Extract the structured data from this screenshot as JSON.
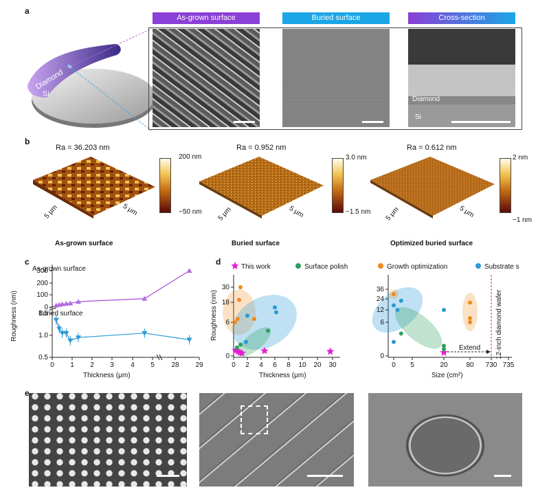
{
  "panel_labels": {
    "a": "a",
    "b": "b",
    "c": "c",
    "d": "d",
    "e": "e"
  },
  "panel_a": {
    "headers": [
      "As-grown surface",
      "Buried surface",
      "Cross-section"
    ],
    "header_colors": [
      "#8a3fd6",
      "#1aa6e6",
      "#6f4fe0"
    ],
    "wafer_labels": {
      "diamond": "Diamond",
      "si": "Si"
    },
    "cross_labels": {
      "diamond": "Diamond",
      "si": "Si"
    }
  },
  "panel_b": {
    "ra": [
      "Ra = 36.203 nm",
      "Ra = 0.952 nm",
      "Ra = 0.612 nm"
    ],
    "cbar_max": [
      "200 nm",
      "3.0 nm",
      "2 nm"
    ],
    "cbar_min": [
      "−50 nm",
      "−1.5 nm",
      "−1 nm"
    ],
    "axis_label": "5 μm",
    "titles": [
      "As-grown surface",
      "Buried surface",
      "Optimized buried surface"
    ]
  },
  "panel_c": {
    "label_top": "As-grown surface",
    "label_bottom": "Buried surface",
    "ylabel": "Roughness (nm)",
    "xlabel": "Thickness (μm)",
    "top_ticks": [
      "300",
      "200",
      "100",
      "0"
    ],
    "bottom_ticks": [
      "1.5",
      "1.0",
      "0.5"
    ],
    "x_ticks": [
      "0",
      "1",
      "2",
      "3",
      "4",
      "5",
      "28",
      "29"
    ]
  },
  "panel_d": {
    "legend": [
      "This work",
      "Surface polish",
      "Growth optimization",
      "Substrate sacrifice"
    ],
    "legend_colors": [
      "#e020d0",
      "#2e9e5e",
      "#f08a1c",
      "#2a9ad6"
    ],
    "ylabel": "Roughness (nm)",
    "left_xlabel": "Thickness (μm)",
    "left_xticks": [
      "0",
      "2",
      "4",
      "6",
      "8",
      "10",
      "20",
      "30"
    ],
    "left_yticks": [
      "30",
      "18",
      "6",
      "0"
    ],
    "right_xlabel": "Size (cm²)",
    "right_xticks": [
      "0",
      "5",
      "20",
      "80",
      "730",
      "735"
    ],
    "right_yticks": [
      "36",
      "24",
      "12",
      "6",
      "0"
    ],
    "extend": "Extend",
    "wafer": "12-inch diamond wafer"
  },
  "chart_data": [
    {
      "type": "scatter",
      "xlabel": "Thickness (μm)",
      "ylabel": "Roughness (nm)",
      "series": [
        {
          "name": "As-grown surface",
          "points": [
            [
              0.2,
              15
            ],
            [
              0.35,
              20
            ],
            [
              0.5,
              25
            ],
            [
              0.7,
              28
            ],
            [
              0.9,
              32
            ],
            [
              1.3,
              45
            ],
            [
              4.6,
              70
            ],
            [
              28.6,
              300
            ]
          ]
        },
        {
          "name": "Buried surface",
          "points": [
            [
              0.2,
              1.35
            ],
            [
              0.35,
              1.15
            ],
            [
              0.5,
              1.05
            ],
            [
              0.7,
              1.05
            ],
            [
              0.9,
              0.88
            ],
            [
              1.3,
              0.95
            ],
            [
              4.6,
              1.05
            ],
            [
              28.6,
              0.9
            ]
          ]
        }
      ]
    },
    {
      "type": "scatter",
      "xlabel": "Thickness (μm)",
      "ylabel": "Roughness (nm)",
      "series": [
        {
          "name": "This work",
          "points": [
            [
              0.3,
              1.0
            ],
            [
              0.6,
              0.8
            ],
            [
              0.9,
              0.6
            ],
            [
              1.2,
              0.5
            ],
            [
              4.5,
              0.9
            ],
            [
              28.5,
              0.8
            ]
          ]
        },
        {
          "name": "Surface polish",
          "points": [
            [
              0.5,
              1.5
            ],
            [
              1.0,
              2.0
            ],
            [
              5.0,
              4.5
            ]
          ]
        },
        {
          "name": "Growth optimization",
          "points": [
            [
              0.2,
              6
            ],
            [
              0.6,
              8
            ],
            [
              0.8,
              20
            ],
            [
              1.0,
              30
            ],
            [
              3.0,
              8
            ]
          ]
        },
        {
          "name": "Substrate sacrifice",
          "points": [
            [
              1.8,
              2.5
            ],
            [
              2.0,
              10
            ],
            [
              6.0,
              15
            ],
            [
              6.2,
              12
            ]
          ]
        }
      ]
    },
    {
      "type": "scatter",
      "xlabel": "Size (cm²)",
      "ylabel": "Roughness (nm)",
      "series": [
        {
          "name": "This work",
          "points": [
            [
              20,
              0.6
            ]
          ]
        },
        {
          "name": "Surface polish",
          "points": [
            [
              2,
              4
            ],
            [
              20,
              1.8
            ],
            [
              20,
              1.2
            ]
          ]
        },
        {
          "name": "Growth optimization",
          "points": [
            [
              0,
              30
            ],
            [
              80,
              20
            ],
            [
              80,
              8
            ],
            [
              80,
              6
            ]
          ]
        },
        {
          "name": "Substrate sacrifice",
          "points": [
            [
              0,
              17
            ],
            [
              1,
              12
            ],
            [
              2,
              22
            ],
            [
              20,
              12
            ],
            [
              0,
              2.5
            ]
          ]
        }
      ]
    }
  ]
}
